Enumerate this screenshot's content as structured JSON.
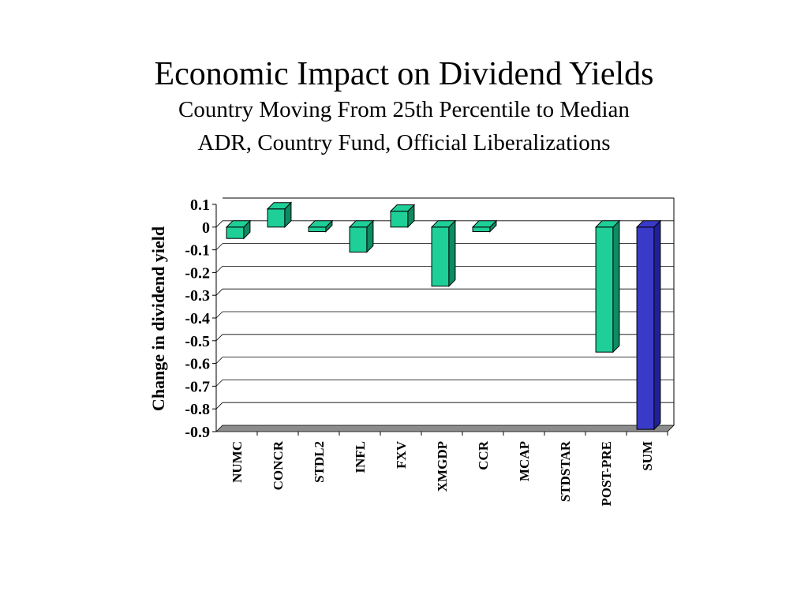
{
  "chart_data": {
    "type": "bar",
    "title": "Economic Impact on Dividend Yields",
    "subtitle_lines": [
      "Country Moving From 25th Percentile to Median",
      "ADR, Country Fund, Official Liberalizations"
    ],
    "xlabel": "",
    "ylabel": "Change in dividend yield",
    "ylim": [
      -0.9,
      0.1
    ],
    "yticks": [
      "0.1",
      "0",
      "-0.1",
      "-0.2",
      "-0.3",
      "-0.4",
      "-0.5",
      "-0.6",
      "-0.7",
      "-0.8",
      "-0.9"
    ],
    "categories": [
      "NUMC",
      "CONCR",
      "STDL2",
      "INFL",
      "FXV",
      "XMGDP",
      "CCR",
      "MCAP",
      "STDSTAR",
      "POST-PRE",
      "SUM"
    ],
    "values": [
      -0.05,
      0.08,
      -0.02,
      -0.11,
      0.07,
      -0.26,
      -0.02,
      0,
      0,
      -0.55,
      -0.89
    ],
    "grid": true,
    "colors": {
      "bar": "#1fcf98",
      "bar_side": "#0f8a62",
      "sum_bar": "#3a3ac8",
      "sum_side": "#20209a",
      "floor": "#8c8c8c",
      "grid": "#000000"
    }
  }
}
